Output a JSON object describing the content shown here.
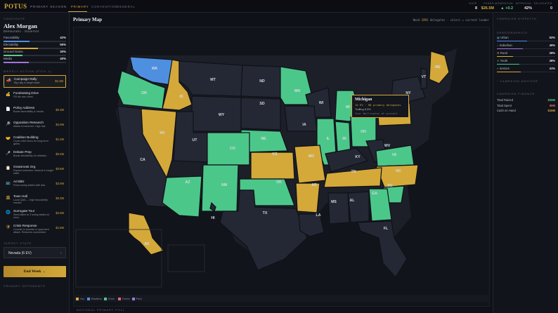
{
  "header": {
    "logo": "POTUS",
    "season": "PRIMARY SEASON",
    "tabs": [
      {
        "label": "PRIMARY",
        "active": true
      },
      {
        "label": "CONVENTION",
        "active": false
      },
      {
        "label": "GENERAL",
        "active": false
      }
    ],
    "stats": [
      {
        "label": "DATE",
        "value": "8"
      },
      {
        "label": "FUNDS",
        "value": "$26.5M",
        "color": "#d4a93a"
      },
      {
        "label": "MOMENTUM",
        "value": "+0.2",
        "color": "#5ec989"
      },
      {
        "label": "APPROVAL",
        "value": "42%"
      },
      {
        "label": "DELEGATES",
        "value": "0"
      }
    ]
  },
  "candidate": {
    "section": "CANDIDATE",
    "name": "Alex Morgan",
    "party": "Democratic · Governor",
    "metrics": [
      {
        "label": "Favorability",
        "value": "42%",
        "pct": 42,
        "color": "#4f8fe0"
      },
      {
        "label": "Electability",
        "value": "55%",
        "pct": 55,
        "color": "#d4a93a"
      },
      {
        "label": "Ground Game",
        "value": "30%",
        "pct": 30,
        "color": "#5ec989"
      },
      {
        "label": "Media",
        "value": "40%",
        "pct": 40,
        "color": "#a176dc"
      }
    ]
  },
  "actions": {
    "section": "WEEKLY ACTION (PICK 1)",
    "items": [
      {
        "icon": "megaphone-icon",
        "glyph": "📣",
        "title": "Campaign Rally",
        "desc": "Big rally in target state.",
        "cost": "$1.2M",
        "selected": true
      },
      {
        "icon": "fundraising-icon",
        "glyph": "💰",
        "title": "Fundraising Drive",
        "desc": "Fill the war chest.",
        "cost": "",
        "selected": false
      },
      {
        "icon": "policy-icon",
        "glyph": "📄",
        "title": "Policy Address",
        "desc": "Boost favorability & media.",
        "cost": "$0.3M",
        "selected": false
      },
      {
        "icon": "research-icon",
        "glyph": "🔎",
        "title": "Opposition Research",
        "desc": "Attack frontrunner. High risk.",
        "cost": "$2.0M",
        "selected": false
      },
      {
        "icon": "handshake-icon",
        "glyph": "🤝",
        "title": "Coalition Building",
        "desc": "Court voter blocs for long-term gains.",
        "cost": "$1.2M",
        "selected": false
      },
      {
        "icon": "podium-icon",
        "glyph": "🎤",
        "title": "Debate Prep",
        "desc": "Boost electability for debates.",
        "cost": "$0.2M",
        "selected": false
      },
      {
        "icon": "clipboard-icon",
        "glyph": "📋",
        "title": "Grassroots Org",
        "desc": "Expand volunteer network in target state.",
        "cost": "$0.5M",
        "selected": false
      },
      {
        "icon": "tv-icon",
        "glyph": "📺",
        "title": "Ad Blitz",
        "desc": "Flood swing states with ads.",
        "cost": "$3.0M",
        "selected": false
      },
      {
        "icon": "townhall-icon",
        "glyph": "🏛",
        "title": "Town Hall",
        "desc": "Local Q&A — high favorability reward.",
        "cost": "$0.3M",
        "selected": false
      },
      {
        "icon": "globe-icon",
        "glyph": "🌐",
        "title": "Surrogate Tour",
        "desc": "Send allies to 3 swing states at once.",
        "cost": "$2.0M",
        "selected": false
      },
      {
        "icon": "shield-icon",
        "glyph": "🛡",
        "title": "Crisis Response",
        "desc": "Counter a scandal or opponent attack. Restores momentum.",
        "cost": "$1.5M",
        "selected": false
      }
    ]
  },
  "target": {
    "section": "TARGET STATE",
    "selected": "Nevada (6 EV)",
    "chevron": "⌄"
  },
  "end_week": "End Week →",
  "opponents_section": "PRIMARY OPPONENTS",
  "map": {
    "title": "Primary Map",
    "need_prefix": "Need ",
    "need_value": "1991",
    "need_suffix": " delegates · colors = current leader",
    "state_labels": [
      "WA",
      "OR",
      "ID",
      "MT",
      "ND",
      "MN",
      "WI",
      "MI",
      "NY",
      "VT",
      "ME",
      "SD",
      "WY",
      "NE",
      "IA",
      "IL",
      "IN",
      "OH",
      "PA",
      "CA",
      "NV",
      "UT",
      "CO",
      "KS",
      "MO",
      "KY",
      "WV",
      "VA",
      "NC",
      "TN",
      "AZ",
      "NM",
      "OK",
      "AR",
      "SC",
      "GA",
      "AL",
      "MS",
      "TX",
      "LA",
      "FL",
      "AK",
      "HI"
    ],
    "legend": [
      {
        "label": "You",
        "color": "#d4a93a"
      },
      {
        "label": "Hawkins",
        "color": "#4f8fe0"
      },
      {
        "label": "Chen",
        "color": "#4cc78a"
      },
      {
        "label": "Torres",
        "color": "#e06b6b"
      },
      {
        "label": "Park",
        "color": "#a176dc"
      }
    ],
    "tooltip": {
      "title": "Michigan",
      "line1": "15 EV · 98 primary delegates",
      "line2": "Trailing 6.3%",
      "line3": "Your Wellington at present"
    },
    "poll_section": "NATIONAL PRIMARY POLL"
  },
  "right": {
    "dispatch": "CAMPAIGN DISPATCH",
    "demo_section": "DEMOGRAPHICS",
    "demographics": [
      {
        "label": "Urban",
        "icon": "city-icon",
        "value": "52%",
        "pct": 52,
        "color": "#4f8fe0"
      },
      {
        "label": "Suburban",
        "icon": "house-icon",
        "value": "45%",
        "pct": 45,
        "color": "#a176dc"
      },
      {
        "label": "Rural",
        "icon": "tractor-icon",
        "value": "28%",
        "pct": 28,
        "color": "#d4a93a"
      },
      {
        "label": "Youth",
        "icon": "youth-icon",
        "value": "38%",
        "pct": 38,
        "color": "#4cc78a"
      },
      {
        "label": "Seniors",
        "icon": "senior-icon",
        "value": "41%",
        "pct": 41,
        "color": "#d4a93a"
      }
    ],
    "advisor": "CAMPAIGN ADVISOR",
    "finance_section": "CAMPAIGN FINANCE",
    "finance": [
      {
        "label": "Total Raised",
        "value": "$25M",
        "color": "#5ec989"
      },
      {
        "label": "Total Spent",
        "value": "$9M",
        "color": "#e06b6b"
      },
      {
        "label": "Cash on Hand",
        "value": "$15M",
        "color": "#d4a93a"
      }
    ]
  }
}
